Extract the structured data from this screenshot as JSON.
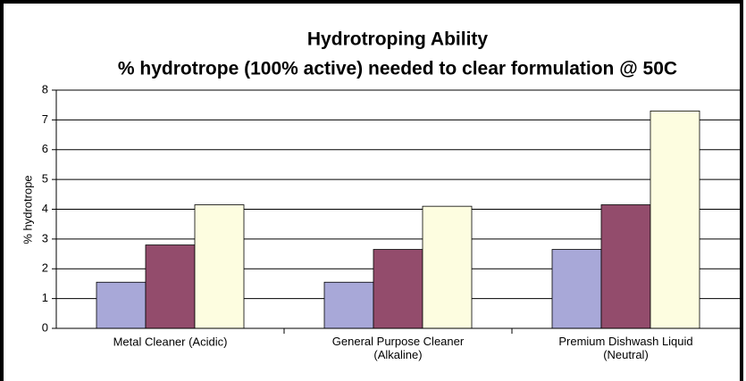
{
  "chart_data": {
    "type": "bar",
    "title": "Hydrotroping Ability",
    "subtitle": "% hydrotrope (100% active) needed to clear formulation @ 50C",
    "y_label": "% hydrotrope",
    "categories": [
      "Metal Cleaner (Acidic)",
      "General Purpose Cleaner\n(Alkaline)",
      "Premium Dishwash Liquid\n(Neutral)"
    ],
    "series": [
      {
        "color": "#a8a8d8",
        "values": [
          1.55,
          1.55,
          2.65
        ]
      },
      {
        "color": "#934c6c",
        "values": [
          2.8,
          2.65,
          4.15
        ]
      },
      {
        "color": "#fdfde0",
        "values": [
          4.15,
          4.1,
          7.3
        ]
      }
    ],
    "ylim": [
      0,
      8
    ],
    "yticks": [
      0,
      1,
      2,
      3,
      4,
      5,
      6,
      7,
      8
    ],
    "grid": true
  }
}
